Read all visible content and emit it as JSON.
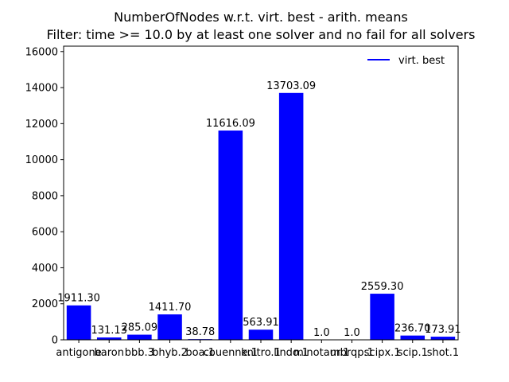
{
  "chart_data": {
    "type": "bar",
    "title": "NumberOfNodes w.r.t. virt. best - arith. means",
    "subtitle": "Filter: time >= 10.0 by at least one solver and no fail for all solvers",
    "xlabel": "",
    "ylabel": "",
    "categories": [
      "antigone",
      "baron",
      "bbb.3",
      "bhyb.2",
      "boa.1",
      "couenne.1",
      "knitro.1",
      "lindo.1",
      "minotaur.1",
      "mbrqp.1",
      "scipx.1",
      "scip.1",
      "shot.1"
    ],
    "tick_labels": [
      "antigone",
      "baron",
      "bbb.3",
      "bhyb.2",
      "boa.1",
      "couenne.1",
      "knitro.1",
      "lindo.1",
      "minotaur.1",
      "mbrqp.1",
      "scipx.1",
      "scip.1",
      "shot.1"
    ],
    "series": [
      {
        "name": "virt. best",
        "values": [
          1911.3,
          131.13,
          285.09,
          1411.7,
          38.78,
          11616.09,
          563.91,
          13703.09,
          1.0,
          1.0,
          2559.3,
          236.7,
          173.91
        ]
      }
    ],
    "data_labels": [
      "1911.30",
      "131.13",
      "285.09",
      "1411.70",
      "38.78",
      "11616.09",
      "563.91",
      "13703.09",
      "1.0",
      "1.0",
      "2559.30",
      "236.70",
      "173.91"
    ],
    "ylim": [
      0,
      16300
    ],
    "yticks": [
      0,
      2000,
      4000,
      6000,
      8000,
      10000,
      12000,
      14000,
      16000
    ],
    "grid": false,
    "legend": {
      "placement": "top-right",
      "entries": [
        "virt. best"
      ]
    },
    "colors": {
      "bar": "#0000ff",
      "legend_line": "#0000ff",
      "axis": "#000000"
    }
  }
}
